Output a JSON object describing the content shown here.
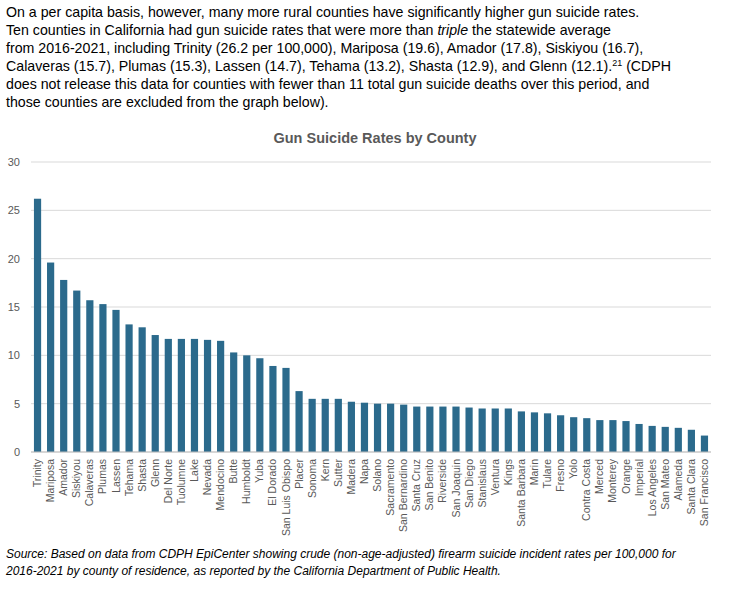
{
  "intro_lines": [
    [
      {
        "text": "On a per capita basis, however, many more rural counties have significantly higher gun suicide rates."
      }
    ],
    [
      {
        "text": "Ten counties in California had gun suicide rates that were more than "
      },
      {
        "text": "triple",
        "italic": true
      },
      {
        "text": " the statewide average"
      }
    ],
    [
      {
        "text": "from 2016-2021, including Trinity (26.2 per 100,000), Mariposa (19.6), Amador (17.8), Siskiyou (16.7),"
      }
    ],
    [
      {
        "text": "Calaveras (15.7), Plumas (15.3), Lassen (14.7), Tehama (13.2), Shasta (12.9), and Glenn (12.1)."
      },
      {
        "text": "21",
        "sup": true
      },
      {
        "text": " (CDPH"
      }
    ],
    [
      {
        "text": "does not release this data for counties with fewer than 11 total gun suicide deaths over this period, and"
      }
    ],
    [
      {
        "text": "those counties are excluded from the graph below)."
      }
    ]
  ],
  "chart_data": {
    "type": "bar",
    "title": "Gun Suicide Rates by County",
    "categories": [
      "Trinity",
      "Mariposa",
      "Amador",
      "Siskiyou",
      "Calaveras",
      "Plumas",
      "Lassen",
      "Tehama",
      "Shasta",
      "Glenn",
      "Del Norte",
      "Tuolumne",
      "Lake",
      "Nevada",
      "Mendocino",
      "Butte",
      "Humboldt",
      "Yuba",
      "El Dorado",
      "San Luis Obispo",
      "Placer",
      "Sonoma",
      "Kern",
      "Sutter",
      "Madera",
      "Napa",
      "Solano",
      "Sacramento",
      "San Bernardino",
      "Santa Cruz",
      "San Benito",
      "Riverside",
      "San Joaquin",
      "San Diego",
      "Stanislaus",
      "Ventura",
      "Kings",
      "Santa Barbara",
      "Marin",
      "Tulare",
      "Fresno",
      "Yolo",
      "Contra Costa",
      "Merced",
      "Monterey",
      "Orange",
      "Imperial",
      "Los Angeles",
      "San Mateo",
      "Alameda",
      "Santa Clara",
      "San Francisco"
    ],
    "values": [
      26.2,
      19.6,
      17.8,
      16.7,
      15.7,
      15.3,
      14.7,
      13.2,
      12.9,
      12.1,
      11.7,
      11.7,
      11.7,
      11.6,
      11.5,
      10.3,
      10.0,
      9.7,
      8.9,
      8.7,
      6.3,
      5.5,
      5.5,
      5.5,
      5.2,
      5.1,
      5.0,
      5.0,
      4.9,
      4.7,
      4.7,
      4.7,
      4.7,
      4.6,
      4.5,
      4.5,
      4.5,
      4.2,
      4.1,
      4.0,
      3.8,
      3.6,
      3.5,
      3.3,
      3.3,
      3.2,
      2.9,
      2.7,
      2.6,
      2.5,
      2.3,
      1.7
    ],
    "color": "#2b6a8c",
    "ylim": [
      0,
      30
    ],
    "yticks": [
      0,
      5,
      10,
      15,
      20,
      25,
      30
    ],
    "grid": true
  },
  "source_lines": [
    "Source: Based on data from CDPH EpiCenter showing crude (non-age-adjusted) firearm suicide incident rates per 100,000 for",
    "2016-2021 by county of residence, as reported by the California Department of Public Health."
  ]
}
